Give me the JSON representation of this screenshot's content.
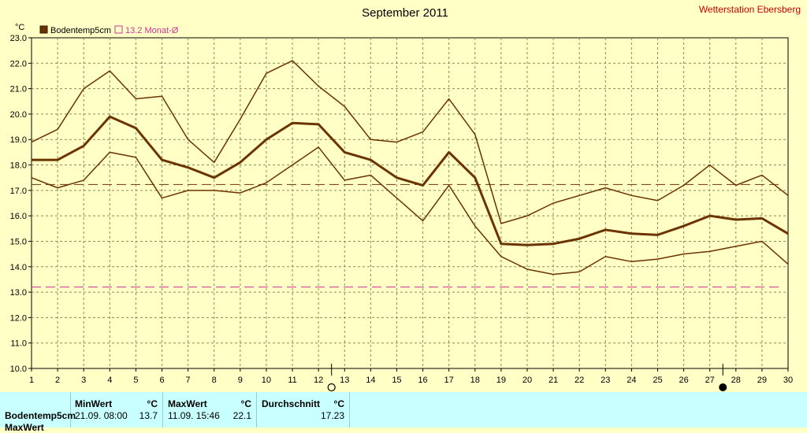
{
  "header": {
    "title": "September 2011",
    "station": "Wetterstation Ebersberg"
  },
  "legend": {
    "series1": "Bodentemp5cm",
    "series2": "13.2 Monat-Ø"
  },
  "chart_data": {
    "type": "line",
    "title": "September 2011",
    "ylabel": "°C",
    "ylim": [
      10.0,
      23.0
    ],
    "y_ticks": [
      "10.0",
      "11.0",
      "12.0",
      "13.0",
      "14.0",
      "15.0",
      "16.0",
      "17.0",
      "18.0",
      "19.0",
      "20.0",
      "21.0",
      "22.0",
      "23.0"
    ],
    "x": [
      1,
      2,
      3,
      4,
      5,
      6,
      7,
      8,
      9,
      10,
      11,
      12,
      13,
      14,
      15,
      16,
      17,
      18,
      19,
      20,
      21,
      22,
      23,
      24,
      25,
      26,
      27,
      28,
      29,
      30
    ],
    "grid": true,
    "legend_position": "top-left",
    "series": [
      {
        "name": "Bodentemp5cm",
        "color": "#6b3300",
        "values": [
          18.2,
          18.2,
          18.75,
          19.9,
          19.45,
          18.2,
          17.9,
          17.5,
          18.1,
          19.0,
          19.65,
          19.6,
          18.5,
          18.2,
          17.5,
          17.2,
          18.5,
          17.5,
          14.9,
          14.85,
          14.9,
          15.1,
          15.45,
          15.3,
          15.25,
          15.6,
          16.0,
          15.85,
          15.9,
          15.3
        ]
      },
      {
        "name": "",
        "color": "#6b3300",
        "values": [
          18.9,
          19.4,
          21.0,
          21.7,
          20.6,
          20.7,
          19.0,
          18.1,
          19.8,
          21.6,
          22.1,
          21.1,
          20.3,
          19.0,
          18.9,
          19.3,
          20.6,
          19.2,
          15.7,
          16.0,
          16.5,
          16.8,
          17.1,
          16.8,
          16.6,
          17.2,
          18.0,
          17.2,
          17.6,
          16.8
        ]
      },
      {
        "name": "",
        "color": "#6b3300",
        "values": [
          17.5,
          17.1,
          17.4,
          18.5,
          18.3,
          16.7,
          17.0,
          17.0,
          16.9,
          17.3,
          18.0,
          18.7,
          17.4,
          17.6,
          16.7,
          15.8,
          17.2,
          15.6,
          14.4,
          13.9,
          13.7,
          13.8,
          14.4,
          14.2,
          14.3,
          14.5,
          14.6,
          14.8,
          15.0,
          14.1
        ]
      }
    ],
    "reference_lines": [
      {
        "name": "13.2 Monat-Ø",
        "value": 13.2,
        "color": "#cc3399"
      },
      {
        "value": 17.23,
        "color": "#6b3300"
      }
    ],
    "moon_markers": [
      12.5,
      27.5
    ]
  },
  "stats": {
    "row_label": "Bodentemp5cm",
    "row_label2": "MaxWert",
    "min_header": "MinWert",
    "max_header": "MaxWert",
    "avg_header": "Durchschnitt",
    "unit": "°C",
    "min_time": "21.09.  08:00",
    "min_value": "13.7",
    "max_time": "11.09.  15:46",
    "max_value": "22.1",
    "avg_value": "17.23"
  }
}
